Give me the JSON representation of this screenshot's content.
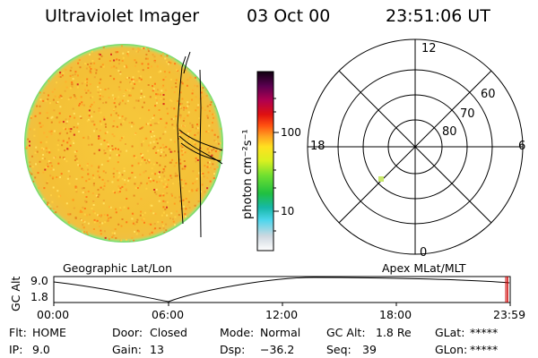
{
  "header": {
    "instrument": "Ultraviolet Imager",
    "date": "03 Oct 00",
    "time": "23:51:06 UT"
  },
  "colorbar": {
    "unit_label": "photon cm⁻²s⁻¹",
    "ticks": [
      "100",
      "10"
    ]
  },
  "polar_plot": {
    "mlt_labels": {
      "top": "12",
      "right": "6",
      "bottom": "0",
      "left": "18"
    },
    "lat_labels": [
      "60",
      "70",
      "80"
    ]
  },
  "map_labels": {
    "geographic": "Geographic Lat/Lon",
    "apex": "Apex MLat/MLT"
  },
  "altitude_plot": {
    "ylabel": "GC Alt",
    "y_ticks": [
      "9.0",
      "1.8"
    ],
    "x_ticks": [
      "00:00",
      "06:00",
      "12:00",
      "18:00",
      "23:59"
    ],
    "current_marker_color": "#cc0000"
  },
  "status": {
    "row1": [
      {
        "label": "Flt:",
        "value": "HOME"
      },
      {
        "label": "Door:",
        "value": "Closed"
      },
      {
        "label": "Mode:",
        "value": "Normal"
      },
      {
        "label": "GC Alt:",
        "value": "1.8 Re"
      },
      {
        "label": "GLat:",
        "value": "*****"
      }
    ],
    "row2": [
      {
        "label": "IP:",
        "value": "9.0"
      },
      {
        "label": "Gain:",
        "value": "13"
      },
      {
        "label": "Dsp:",
        "value": "−36.2"
      },
      {
        "label": "Seq:",
        "value": "39"
      },
      {
        "label": "GLon:",
        "value": "*****"
      }
    ]
  },
  "colors": {
    "disk_base": "#f6c83a",
    "disk_edge": "#7ddc70",
    "marker": "#c8e86a"
  }
}
